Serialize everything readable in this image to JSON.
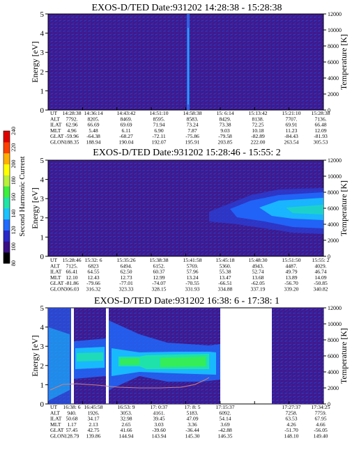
{
  "colorbar": {
    "label": "Second Harmonic Current",
    "ticks": [
      "80",
      "100",
      "120",
      "140",
      "160",
      "180",
      "200",
      "220",
      "240"
    ],
    "colors": [
      "#000000",
      "#3a0f86",
      "#2a28c8",
      "#1f6bff",
      "#18c3ff",
      "#20e4a6",
      "#3cf03c",
      "#b8f03a",
      "#ffff00",
      "#ffb000",
      "#ff4000",
      "#e00000"
    ]
  },
  "chart_data": [
    {
      "type": "heatmap",
      "title": "EXOS-D/TED   Date:931202   14:28:38 - 15:28:38",
      "ylabel": "Energy [eV]",
      "y2label": "Temperature [K]",
      "ylim": [
        0,
        5
      ],
      "y2lim": [
        0,
        12000
      ],
      "yticks": [
        "0",
        "1",
        "2",
        "3",
        "4",
        "5"
      ],
      "y2ticks": [
        "0",
        "2000",
        "4000",
        "6000",
        "8000",
        "10000",
        "12000"
      ],
      "ephemeris": {
        "labels": [
          "UT",
          "ALT",
          "ILAT",
          "MLT",
          "GLAT",
          "GLON"
        ],
        "columns": [
          [
            "14:28:38",
            "7792.",
            "62.96",
            "4.96",
            "-59.96",
            "188.35"
          ],
          [
            "14:36:14",
            "8205.",
            "66.69",
            "5.48",
            "-64.38",
            "188.94"
          ],
          [
            "14:43:42",
            "8469.",
            "69.69",
            "6.11",
            "-68.27",
            "190.04"
          ],
          [
            "14:51:10",
            "8595.",
            "71.94",
            "6.90",
            "-72.11",
            "192.07"
          ],
          [
            "14:58:38",
            "8583.",
            "73.24",
            "7.87",
            "-75.86",
            "195.91"
          ],
          [
            "15: 6:14",
            "8429.",
            "73.38",
            "9.03",
            "-79.58",
            "203.85"
          ],
          [
            "15:13:42",
            "8138.",
            "72.25",
            "10.18",
            "-82.89",
            "222.00"
          ],
          [
            "15:21:10",
            "7707.",
            "69.91",
            "11.23",
            "-84.43",
            "263.54"
          ],
          [
            "15:28:38",
            "7136.",
            "66.48",
            "12.09",
            "-81.93",
            "305.53"
          ]
        ]
      }
    },
    {
      "type": "heatmap",
      "title": "EXOS-D/TED   Date:931202   15:28:46 - 15:55: 2",
      "ylabel": "Energy [eV]",
      "y2label": "Temperature [K]",
      "ylim": [
        0,
        5
      ],
      "y2lim": [
        0,
        12000
      ],
      "yticks": [
        "0",
        "1",
        "2",
        "3",
        "4",
        "5"
      ],
      "y2ticks": [
        "0",
        "2000",
        "4000",
        "6000",
        "8000",
        "10000",
        "12000"
      ],
      "ephemeris": {
        "labels": [
          "UT",
          "ALT",
          "ILAT",
          "MLT",
          "GLAT",
          "GLON"
        ],
        "columns": [
          [
            "15:28:46",
            "7125.",
            "66.41",
            "12.10",
            "-81.86",
            "306.03"
          ],
          [
            "15:32: 6",
            "6823",
            "64.55",
            "12.43",
            "-79.66",
            "316.32"
          ],
          [
            "15:35:26",
            "6494.",
            "62.50",
            "12.73",
            "-77.01",
            "323.33"
          ],
          [
            "15:38:38",
            "6152.",
            "60.37",
            "12.99",
            "-74.07",
            "328.15"
          ],
          [
            "15:41:58",
            "5769.",
            "57.96",
            "13.24",
            "-70.55",
            "331.93"
          ],
          [
            "15:45:18",
            "5360.",
            "55.38",
            "13.47",
            "-66.51",
            "334.88"
          ],
          [
            "15:48:30",
            "4943.",
            "52.74",
            "13.68",
            "-62.05",
            "337.19"
          ],
          [
            "15:51:50",
            "4487.",
            "49.79",
            "13.89",
            "-56.70",
            "339.20"
          ],
          [
            "15:55: 2",
            "4029.",
            "46.74",
            "14.09",
            "-50.85",
            "340.82"
          ]
        ]
      }
    },
    {
      "type": "heatmap",
      "title": "EXOS-D/TED   Date:931202   16:38: 6 - 17:38: 1",
      "ylabel": "Energy [eV]",
      "y2label": "Temperature [K]",
      "ylim": [
        0,
        5
      ],
      "y2lim": [
        0,
        12000
      ],
      "yticks": [
        "0",
        "1",
        "2",
        "3",
        "4",
        "5"
      ],
      "y2ticks": [
        "0",
        "2000",
        "4000",
        "6000",
        "8000",
        "10000",
        "12000"
      ],
      "ephemeris": {
        "labels": [
          "UT",
          "ALT",
          "ILAT",
          "MLT",
          "GLAT",
          "GLON"
        ],
        "columns": [
          [
            "16:38: 6",
            "940.",
            "50.68",
            "1.17",
            "57.45",
            "128.79"
          ],
          [
            "16:45:58",
            "1926.",
            "34.17",
            "2.13",
            "42.75",
            "139.86"
          ],
          [
            "16:53: 9",
            "3053.",
            "32.98",
            "2.65",
            "41.66",
            "144.94"
          ],
          [
            "17: 0:37",
            "4161.",
            "39.45",
            "3.03",
            "-39.60",
            "143.94"
          ],
          [
            "17: 8: 5",
            "5183.",
            "47.09",
            "3.36",
            "-36.44",
            "145.30"
          ],
          [
            "17:15:37",
            "6092.",
            "54.14",
            "3.69",
            "-42.88",
            "146.35"
          ],
          [
            "",
            "",
            "",
            "",
            "",
            ""
          ],
          [
            "17:27:37",
            "7258.",
            "63.53",
            "4.26",
            "-51.70",
            "148.10"
          ],
          [
            "17:34:25",
            "7759.",
            "67.95",
            "4.66",
            "-56.05",
            "149.40"
          ]
        ]
      }
    }
  ]
}
